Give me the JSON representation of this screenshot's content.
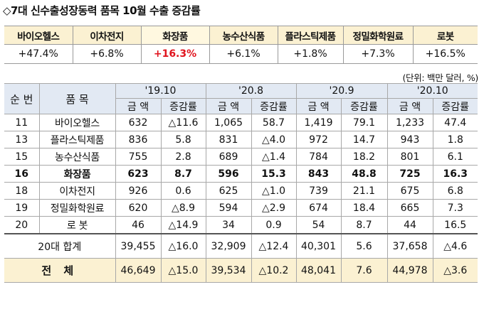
{
  "title": "◇7대 신수출성장동력 품목 10월 수출 증감률",
  "summary": {
    "headers": [
      "바이오헬스",
      "이차전지",
      "화장품",
      "농수산식품",
      "플라스틱제품",
      "정밀화학원료",
      "로봇"
    ],
    "values": [
      "+47.4%",
      "+6.8%",
      "+16.3%",
      "+6.1%",
      "+1.8%",
      "+7.3%",
      "+16.5%"
    ]
  },
  "unit_note": "(단위: 백만 달러, %)",
  "table": {
    "col_no": "순 번",
    "col_item": "품 목",
    "periods": [
      "'19.10",
      "'20.8",
      "'20.9",
      "'20.10"
    ],
    "sub_amount": "금 액",
    "sub_rate": "증감률",
    "rows": [
      {
        "no": "11",
        "item": "바이오헬스",
        "v": [
          "632",
          "△11.6",
          "1,065",
          "58.7",
          "1,419",
          "79.1",
          "1,233",
          "47.4"
        ]
      },
      {
        "no": "13",
        "item": "플라스틱제품",
        "v": [
          "836",
          "5.8",
          "831",
          "△4.0",
          "972",
          "14.7",
          "943",
          "1.8"
        ]
      },
      {
        "no": "15",
        "item": "농수산식품",
        "v": [
          "755",
          "2.8",
          "689",
          "△1.4",
          "784",
          "18.2",
          "801",
          "6.1"
        ]
      },
      {
        "no": "16",
        "item": "화장품",
        "v": [
          "623",
          "8.7",
          "596",
          "15.3",
          "843",
          "48.8",
          "725",
          "16.3"
        ]
      },
      {
        "no": "18",
        "item": "이차전지",
        "v": [
          "926",
          "0.6",
          "625",
          "△1.0",
          "739",
          "21.1",
          "675",
          "6.8"
        ]
      },
      {
        "no": "19",
        "item": "정밀화학원료",
        "v": [
          "620",
          "△8.9",
          "594",
          "△2.9",
          "674",
          "18.4",
          "665",
          "7.3"
        ]
      },
      {
        "no": "20",
        "item": "로 봇",
        "v": [
          "46",
          "△14.9",
          "34",
          "0.9",
          "54",
          "8.7",
          "44",
          "16.5"
        ]
      }
    ],
    "subtotal": {
      "label": "20대 합계",
      "v": [
        "39,455",
        "△16.0",
        "32,909",
        "△12.4",
        "40,301",
        "5.6",
        "37,658",
        "△4.6"
      ]
    },
    "total": {
      "label": "전 체",
      "v": [
        "46,649",
        "△15.0",
        "39,534",
        "△10.2",
        "48,041",
        "7.6",
        "44,978",
        "△3.6"
      ]
    }
  }
}
